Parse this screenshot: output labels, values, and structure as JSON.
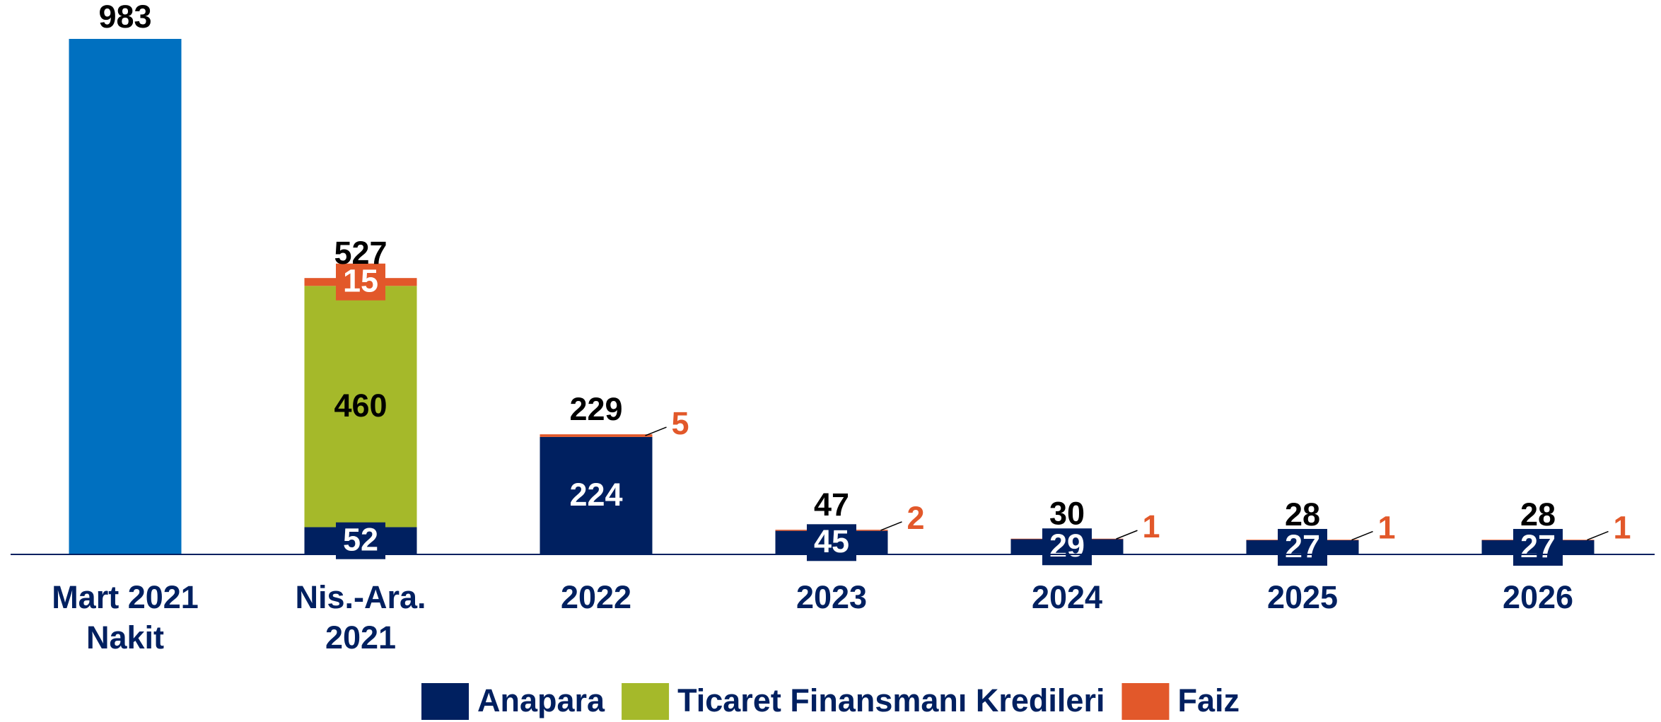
{
  "chart_data": {
    "type": "stacked-bar",
    "categories": [
      [
        "Mart 2021",
        "Nakit"
      ],
      [
        "Nis.-Ara.",
        "2021"
      ],
      [
        "2022"
      ],
      [
        "2023"
      ],
      [
        "2024"
      ],
      [
        "2025"
      ],
      [
        "2026"
      ]
    ],
    "cash": {
      "color": "#0070c0",
      "values": [
        983,
        null,
        null,
        null,
        null,
        null,
        null
      ]
    },
    "series": [
      {
        "name": "Anapara",
        "color": "#002060",
        "values": [
          null,
          52,
          224,
          45,
          29,
          27,
          27
        ]
      },
      {
        "name": "Ticaret Finansmanı Kredileri",
        "color": "#a5b92a",
        "values": [
          null,
          460,
          null,
          null,
          null,
          null,
          null
        ]
      },
      {
        "name": "Faiz",
        "color": "#e2582a",
        "values": [
          null,
          15,
          5,
          2,
          1,
          1,
          1
        ]
      }
    ],
    "totals": [
      null,
      527,
      229,
      47,
      30,
      28,
      28
    ],
    "legend": "bottom"
  }
}
